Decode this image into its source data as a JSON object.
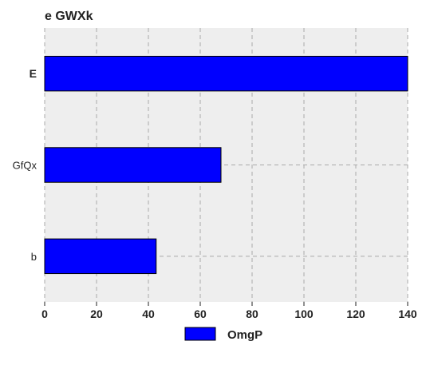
{
  "chart_data": {
    "type": "bar",
    "orientation": "horizontal",
    "title": "e GWXk",
    "categories": [
      "E",
      "GfQx",
      "b"
    ],
    "series": [
      {
        "name": "OmgP",
        "values": [
          140,
          68,
          43
        ],
        "color": "#0000ff"
      }
    ],
    "xlim": [
      0,
      140
    ],
    "xticks": [
      0,
      20,
      40,
      60,
      80,
      100,
      120,
      140
    ],
    "grid": true,
    "legend": "bottom-center",
    "background": "#eeeeee"
  }
}
